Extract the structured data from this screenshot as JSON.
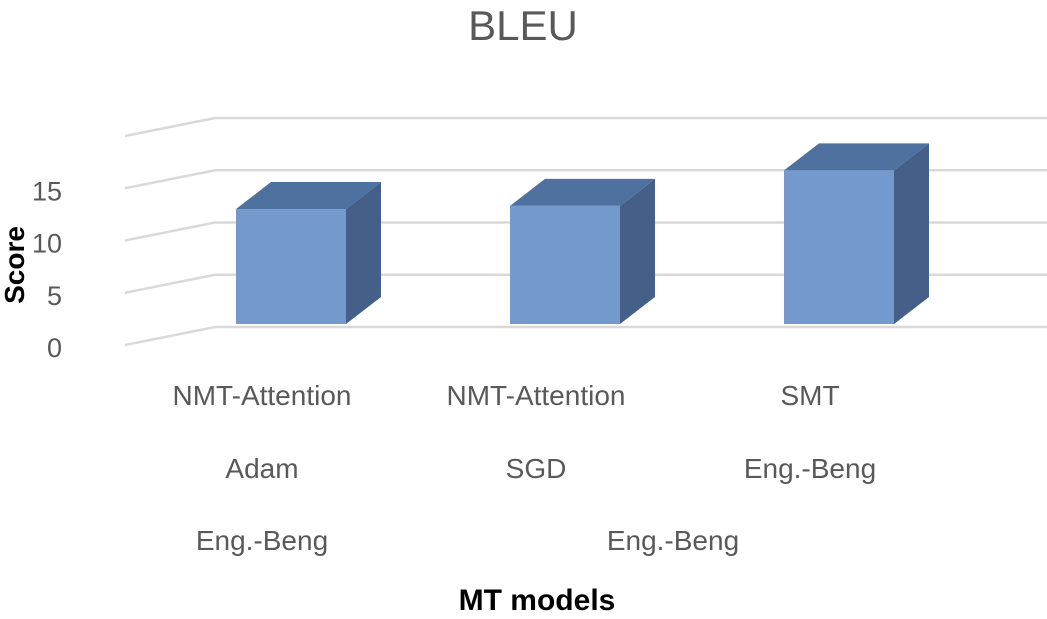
{
  "chart_data": {
    "type": "bar",
    "style": "3d-column",
    "title": "BLEU",
    "xlabel": "MT models",
    "ylabel": "Score",
    "ylim": [
      0,
      20
    ],
    "yticks": [
      "0",
      "5",
      "10",
      "15"
    ],
    "grid": true,
    "categories": [
      {
        "levels": [
          "NMT-Attention",
          "Adam"
        ]
      },
      {
        "levels": [
          "NMT-Attention",
          "SGD"
        ]
      },
      {
        "levels": [
          "SMT",
          "Eng.-Beng"
        ]
      }
    ],
    "group_labels": [
      "Eng.-Beng",
      "Eng.-Beng"
    ],
    "values": [
      11.0,
      11.3,
      14.7
    ],
    "colors": {
      "front": "#7499cd",
      "top": "#4f71a0",
      "side": "#445f88",
      "grid": "#d9d9d9"
    }
  }
}
